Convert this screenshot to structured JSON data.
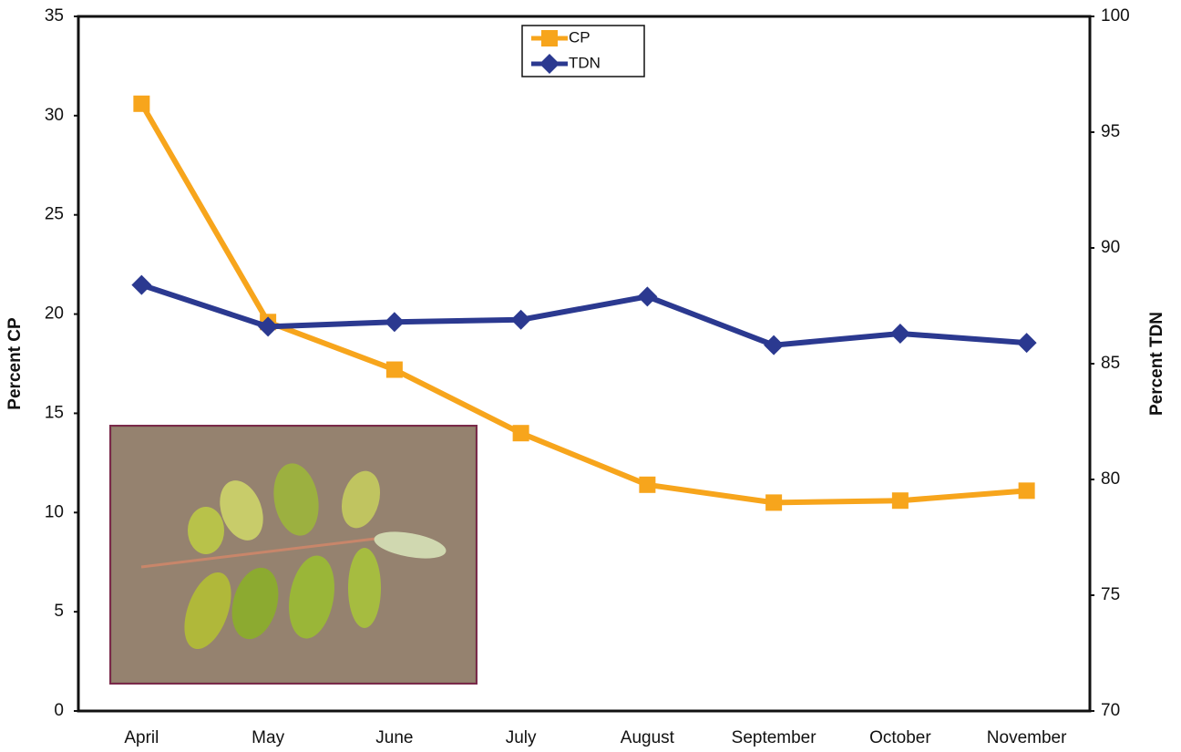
{
  "chart_data": {
    "type": "line",
    "categories": [
      "April",
      "May",
      "June",
      "July",
      "August",
      "September",
      "October",
      "November"
    ],
    "series": [
      {
        "name": "CP",
        "color": "#f7a51c",
        "marker": "square",
        "values": [
          30.6,
          19.6,
          17.2,
          14.0,
          11.4,
          10.5,
          10.6,
          11.1
        ]
      },
      {
        "name": "TDN",
        "color": "#2b3990",
        "marker": "diamond",
        "axis": "y2",
        "values": [
          88.4,
          86.6,
          86.8,
          86.9,
          87.9,
          85.8,
          86.3,
          85.9
        ]
      }
    ],
    "ylabel": "Percent CP",
    "y2label": "Percent TDN",
    "ylim": [
      0,
      35
    ],
    "yticks": [
      0,
      5,
      10,
      15,
      20,
      25,
      30,
      35
    ],
    "y2lim": [
      70,
      100
    ],
    "y2ticks": [
      70,
      75,
      80,
      85,
      90,
      95,
      100
    ],
    "grid": false,
    "legend": "top"
  }
}
